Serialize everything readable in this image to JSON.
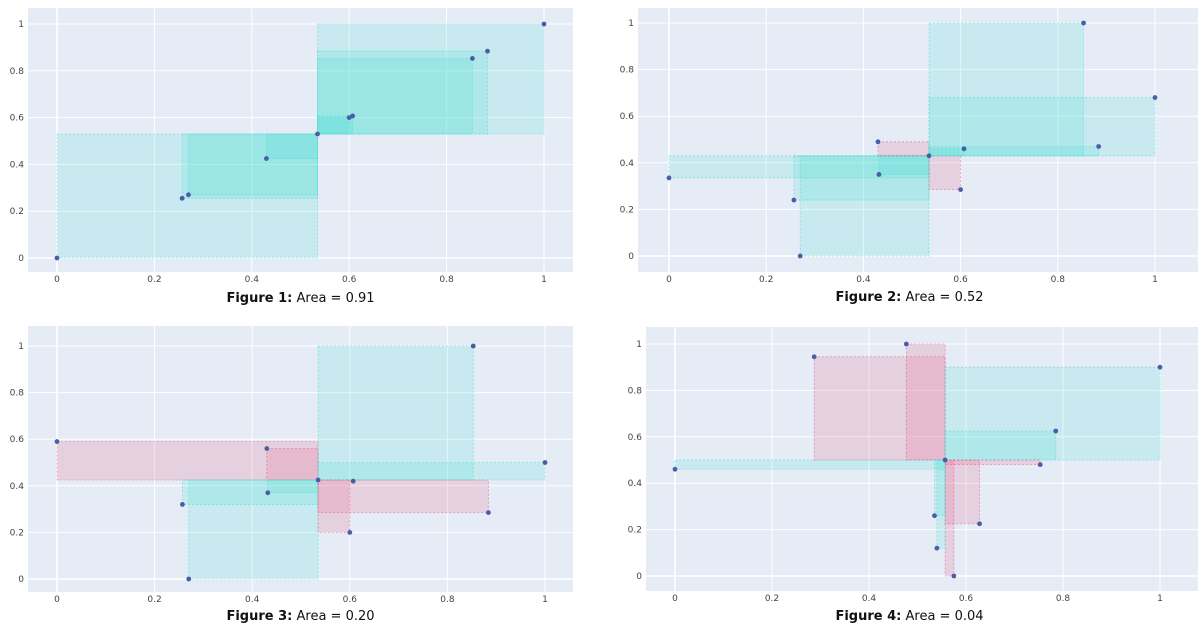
{
  "colors": {
    "plot_bg": "#e5ecf6",
    "grid": "#ffffff",
    "teal_fill": "#40e0d0",
    "pink_fill": "#e75480",
    "point": "#4a5ea8"
  },
  "chart_data": [
    {
      "type": "scatter",
      "caption_label": "Figure 1:",
      "caption_text": "Area = 0.91",
      "xlim": [
        0,
        1
      ],
      "ylim": [
        0,
        1
      ],
      "x_ticks": [
        "0",
        "0.2",
        "0.4",
        "0.6",
        "0.8",
        "1"
      ],
      "y_ticks": [
        "0",
        "0.2",
        "0.4",
        "0.6",
        "0.8",
        "1"
      ],
      "grid": true,
      "points": [
        [
          0,
          0
        ],
        [
          0.257,
          0.255
        ],
        [
          0.27,
          0.27
        ],
        [
          0.43,
          0.425
        ],
        [
          0.535,
          0.53
        ],
        [
          0.6,
          0.6
        ],
        [
          0.607,
          0.607
        ],
        [
          0.853,
          0.853
        ],
        [
          0.884,
          0.884
        ],
        [
          1,
          1
        ]
      ],
      "rects": [
        {
          "x0": 0,
          "x1": 0.535,
          "y0": 0,
          "y1": 0.53,
          "color": "teal"
        },
        {
          "x0": 0.257,
          "x1": 0.535,
          "y0": 0.255,
          "y1": 0.53,
          "color": "teal"
        },
        {
          "x0": 0.27,
          "x1": 0.535,
          "y0": 0.27,
          "y1": 0.53,
          "color": "teal"
        },
        {
          "x0": 0.43,
          "x1": 0.535,
          "y0": 0.425,
          "y1": 0.53,
          "color": "teal"
        },
        {
          "x0": 0.535,
          "x1": 1,
          "y0": 0.53,
          "y1": 1,
          "color": "teal"
        },
        {
          "x0": 0.535,
          "x1": 0.884,
          "y0": 0.53,
          "y1": 0.884,
          "color": "teal"
        },
        {
          "x0": 0.535,
          "x1": 0.853,
          "y0": 0.53,
          "y1": 0.853,
          "color": "teal"
        },
        {
          "x0": 0.535,
          "x1": 0.607,
          "y0": 0.53,
          "y1": 0.607,
          "color": "teal"
        },
        {
          "x0": 0.535,
          "x1": 0.6,
          "y0": 0.53,
          "y1": 0.6,
          "color": "teal"
        }
      ]
    },
    {
      "type": "scatter",
      "caption_label": "Figure 2:",
      "caption_text": "Area = 0.52",
      "xlim": [
        0,
        1
      ],
      "ylim": [
        0,
        1
      ],
      "x_ticks": [
        "0",
        "0.2",
        "0.4",
        "0.6",
        "0.8",
        "1"
      ],
      "y_ticks": [
        "0",
        "0.2",
        "0.4",
        "0.6",
        "0.8",
        "1"
      ],
      "grid": true,
      "points": [
        [
          0,
          0.335
        ],
        [
          0.257,
          0.24
        ],
        [
          0.27,
          0
        ],
        [
          0.43,
          0.49
        ],
        [
          0.432,
          0.35
        ],
        [
          0.535,
          0.43
        ],
        [
          0.6,
          0.285
        ],
        [
          0.607,
          0.46
        ],
        [
          0.853,
          1
        ],
        [
          0.884,
          0.47
        ],
        [
          1,
          0.68
        ]
      ],
      "rects": [
        {
          "x0": 0,
          "x1": 0.535,
          "y0": 0.335,
          "y1": 0.43,
          "color": "teal"
        },
        {
          "x0": 0.257,
          "x1": 0.535,
          "y0": 0.24,
          "y1": 0.43,
          "color": "teal"
        },
        {
          "x0": 0.27,
          "x1": 0.535,
          "y0": 0,
          "y1": 0.43,
          "color": "teal"
        },
        {
          "x0": 0.432,
          "x1": 0.535,
          "y0": 0.35,
          "y1": 0.43,
          "color": "teal"
        },
        {
          "x0": 0.43,
          "x1": 0.535,
          "y0": 0.43,
          "y1": 0.49,
          "color": "pink"
        },
        {
          "x0": 0.535,
          "x1": 0.6,
          "y0": 0.285,
          "y1": 0.43,
          "color": "pink"
        },
        {
          "x0": 0.535,
          "x1": 0.853,
          "y0": 0.43,
          "y1": 1,
          "color": "teal"
        },
        {
          "x0": 0.535,
          "x1": 1,
          "y0": 0.43,
          "y1": 0.68,
          "color": "teal"
        },
        {
          "x0": 0.535,
          "x1": 0.884,
          "y0": 0.43,
          "y1": 0.47,
          "color": "teal"
        },
        {
          "x0": 0.535,
          "x1": 0.607,
          "y0": 0.43,
          "y1": 0.46,
          "color": "teal"
        }
      ]
    },
    {
      "type": "scatter",
      "caption_label": "Figure 3:",
      "caption_text": "Area = 0.20",
      "xlim": [
        0,
        1
      ],
      "ylim": [
        0,
        1
      ],
      "x_ticks": [
        "0",
        "0.2",
        "0.4",
        "0.6",
        "0.8",
        "1"
      ],
      "y_ticks": [
        "0",
        "0.2",
        "0.4",
        "0.6",
        "0.8",
        "1"
      ],
      "grid": true,
      "points": [
        [
          0,
          0.59
        ],
        [
          0.257,
          0.32
        ],
        [
          0.27,
          0
        ],
        [
          0.43,
          0.56
        ],
        [
          0.432,
          0.37
        ],
        [
          0.535,
          0.425
        ],
        [
          0.6,
          0.2
        ],
        [
          0.607,
          0.42
        ],
        [
          0.853,
          1
        ],
        [
          0.884,
          0.285
        ],
        [
          1,
          0.5
        ]
      ],
      "rects": [
        {
          "x0": 0,
          "x1": 0.535,
          "y0": 0.425,
          "y1": 0.59,
          "color": "pink"
        },
        {
          "x0": 0.43,
          "x1": 0.535,
          "y0": 0.425,
          "y1": 0.56,
          "color": "pink"
        },
        {
          "x0": 0.257,
          "x1": 0.535,
          "y0": 0.32,
          "y1": 0.425,
          "color": "teal"
        },
        {
          "x0": 0.27,
          "x1": 0.535,
          "y0": 0,
          "y1": 0.425,
          "color": "teal"
        },
        {
          "x0": 0.432,
          "x1": 0.535,
          "y0": 0.37,
          "y1": 0.425,
          "color": "teal"
        },
        {
          "x0": 0.535,
          "x1": 0.853,
          "y0": 0.425,
          "y1": 1,
          "color": "teal"
        },
        {
          "x0": 0.535,
          "x1": 1,
          "y0": 0.425,
          "y1": 0.5,
          "color": "teal"
        },
        {
          "x0": 0.535,
          "x1": 0.884,
          "y0": 0.285,
          "y1": 0.425,
          "color": "pink"
        },
        {
          "x0": 0.535,
          "x1": 0.6,
          "y0": 0.2,
          "y1": 0.425,
          "color": "pink"
        }
      ]
    },
    {
      "type": "scatter",
      "caption_label": "Figure 4:",
      "caption_text": "Area = 0.04",
      "xlim": [
        0,
        1
      ],
      "ylim": [
        0,
        1
      ],
      "x_ticks": [
        "0",
        "0.2",
        "0.4",
        "0.6",
        "0.8",
        "1"
      ],
      "y_ticks": [
        "0",
        "0.2",
        "0.4",
        "0.6",
        "0.8",
        "1"
      ],
      "grid": true,
      "points": [
        [
          0,
          0.46
        ],
        [
          0.287,
          0.945
        ],
        [
          0.477,
          1
        ],
        [
          0.535,
          0.26
        ],
        [
          0.54,
          0.12
        ],
        [
          0.557,
          0.5
        ],
        [
          0.575,
          0
        ],
        [
          0.628,
          0.225
        ],
        [
          0.753,
          0.48
        ],
        [
          0.785,
          0.625
        ],
        [
          1,
          0.9
        ]
      ],
      "rects": [
        {
          "x0": 0.287,
          "x1": 0.557,
          "y0": 0.5,
          "y1": 0.945,
          "color": "pink"
        },
        {
          "x0": 0.477,
          "x1": 0.557,
          "y0": 0.5,
          "y1": 1,
          "color": "pink"
        },
        {
          "x0": 0,
          "x1": 0.557,
          "y0": 0.46,
          "y1": 0.5,
          "color": "teal"
        },
        {
          "x0": 0.557,
          "x1": 1,
          "y0": 0.5,
          "y1": 0.9,
          "color": "teal"
        },
        {
          "x0": 0.557,
          "x1": 0.785,
          "y0": 0.5,
          "y1": 0.625,
          "color": "teal"
        },
        {
          "x0": 0.557,
          "x1": 0.753,
          "y0": 0.48,
          "y1": 0.5,
          "color": "pink"
        },
        {
          "x0": 0.557,
          "x1": 0.628,
          "y0": 0.225,
          "y1": 0.5,
          "color": "pink"
        },
        {
          "x0": 0.557,
          "x1": 0.575,
          "y0": 0,
          "y1": 0.5,
          "color": "pink"
        },
        {
          "x0": 0.535,
          "x1": 0.557,
          "y0": 0.26,
          "y1": 0.5,
          "color": "teal"
        },
        {
          "x0": 0.54,
          "x1": 0.557,
          "y0": 0.12,
          "y1": 0.5,
          "color": "teal"
        }
      ]
    }
  ]
}
